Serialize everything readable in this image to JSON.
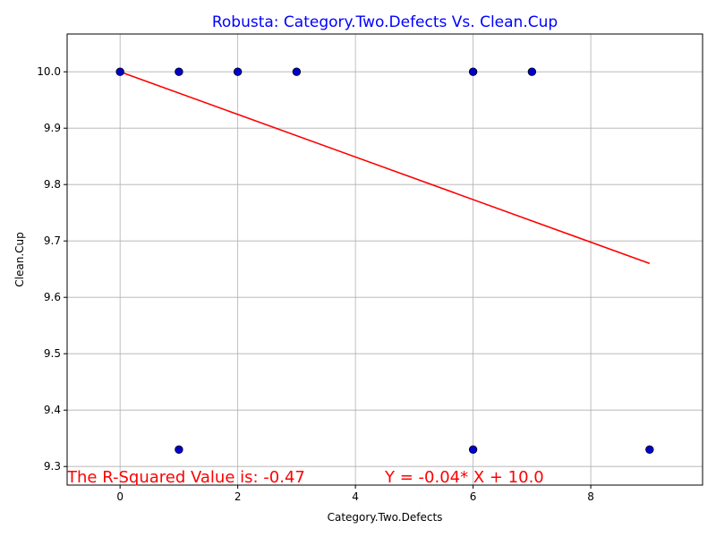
{
  "chart_data": {
    "type": "scatter",
    "title": "Robusta: Category.Two.Defects Vs. Clean.Cup",
    "xlabel": "Category.Two.Defects",
    "ylabel": "Clean.Cup",
    "xlim": [
      -0.9,
      9.9
    ],
    "ylim": [
      9.267,
      10.067
    ],
    "xticks": [
      0,
      2,
      4,
      6,
      8
    ],
    "yticks": [
      9.3,
      9.4,
      9.5,
      9.6,
      9.7,
      9.8,
      9.9,
      10.0
    ],
    "xtick_labels": [
      "0",
      "2",
      "4",
      "6",
      "8"
    ],
    "ytick_labels": [
      "9.3",
      "9.4",
      "9.5",
      "9.6",
      "9.7",
      "9.8",
      "9.9",
      "10.0"
    ],
    "grid": true,
    "points": [
      {
        "x": 0,
        "y": 10.0
      },
      {
        "x": 1,
        "y": 10.0
      },
      {
        "x": 2,
        "y": 10.0
      },
      {
        "x": 3,
        "y": 10.0
      },
      {
        "x": 6,
        "y": 10.0
      },
      {
        "x": 7,
        "y": 10.0
      },
      {
        "x": 1,
        "y": 9.33
      },
      {
        "x": 6,
        "y": 9.33
      },
      {
        "x": 9,
        "y": 9.33
      }
    ],
    "regression_line": {
      "x": [
        0,
        9
      ],
      "y": [
        10.0,
        9.66
      ]
    },
    "annotations": [
      {
        "text": "The R-Squared Value is: -0.47",
        "x": -0.9,
        "y": 9.28
      },
      {
        "text": "Y = -0.04* X + 10.0",
        "x": 4.5,
        "y": 9.28
      }
    ],
    "colors": {
      "title": "#0000ff",
      "marker_fill": "#0000cc",
      "marker_edge": "#000000",
      "line": "#ff0000",
      "annotation": "#ff0000",
      "grid": "#b0b0b0"
    }
  }
}
